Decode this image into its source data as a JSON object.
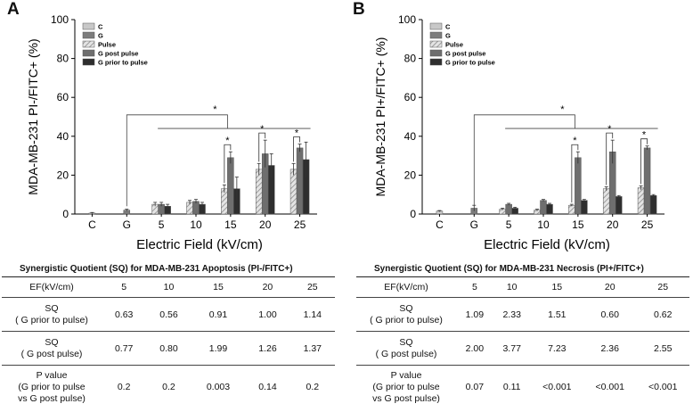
{
  "colors": {
    "C": "#c8c8c8",
    "G": "#7c7c7c",
    "Pulse": "#bdbdbd",
    "G post pulse": "#6e6e6e",
    "G prior to pulse": "#2e2e2e"
  },
  "chart_data": [
    {
      "type": "bar",
      "panel": "A",
      "ylabel": "MDA-MB-231 PI-/FITC+ (%)",
      "xlabel": "Electric Field (kV/cm)",
      "ylim": [
        0,
        100
      ],
      "yticks": [
        "0",
        "20",
        "40",
        "60",
        "80",
        "100"
      ],
      "categories": [
        "C",
        "G",
        "5",
        "10",
        "15",
        "20",
        "25"
      ],
      "legend": [
        "C",
        "G",
        "Pulse",
        "G post pulse",
        "G prior to pulse"
      ],
      "significance": "*",
      "groups": [
        {
          "label": "C",
          "bars": [
            {
              "series": "C",
              "value": 0.5,
              "err": 0.3
            }
          ]
        },
        {
          "label": "G",
          "bars": [
            {
              "series": "G",
              "value": 2,
              "err": 0.5
            }
          ]
        },
        {
          "label": "5",
          "bars": [
            {
              "series": "Pulse",
              "value": 5,
              "err": 1
            },
            {
              "series": "G post pulse",
              "value": 5,
              "err": 1
            },
            {
              "series": "G prior to pulse",
              "value": 4,
              "err": 1
            }
          ]
        },
        {
          "label": "10",
          "bars": [
            {
              "series": "Pulse",
              "value": 6,
              "err": 1
            },
            {
              "series": "G post pulse",
              "value": 6.5,
              "err": 1
            },
            {
              "series": "G prior to pulse",
              "value": 5,
              "err": 1
            }
          ]
        },
        {
          "label": "15",
          "bars": [
            {
              "series": "Pulse",
              "value": 13,
              "err": 2
            },
            {
              "series": "G post pulse",
              "value": 29,
              "err": 3
            },
            {
              "series": "G prior to pulse",
              "value": 13,
              "err": 6
            }
          ]
        },
        {
          "label": "20",
          "bars": [
            {
              "series": "Pulse",
              "value": 23,
              "err": 3
            },
            {
              "series": "G post pulse",
              "value": 31,
              "err": 7
            },
            {
              "series": "G prior to pulse",
              "value": 25,
              "err": 6
            }
          ]
        },
        {
          "label": "25",
          "bars": [
            {
              "series": "Pulse",
              "value": 23,
              "err": 3
            },
            {
              "series": "G post pulse",
              "value": 34,
              "err": 2
            },
            {
              "series": "G prior to pulse",
              "value": 28,
              "err": 9
            }
          ]
        }
      ]
    },
    {
      "type": "bar",
      "panel": "B",
      "ylabel": "MDA-MB-231 PI+/FITC+ (%)",
      "xlabel": "Electric Field (kV/cm)",
      "ylim": [
        0,
        100
      ],
      "yticks": [
        "0",
        "20",
        "40",
        "60",
        "80",
        "100"
      ],
      "categories": [
        "C",
        "G",
        "5",
        "10",
        "15",
        "20",
        "25"
      ],
      "legend": [
        "C",
        "G",
        "Pulse",
        "G post pulse",
        "G prior to pulse"
      ],
      "significance": "*",
      "groups": [
        {
          "label": "C",
          "bars": [
            {
              "series": "C",
              "value": 1.5,
              "err": 0.3
            }
          ]
        },
        {
          "label": "G",
          "bars": [
            {
              "series": "G",
              "value": 3,
              "err": 1.5
            }
          ]
        },
        {
          "label": "5",
          "bars": [
            {
              "series": "Pulse",
              "value": 2.5,
              "err": 0.5
            },
            {
              "series": "G post pulse",
              "value": 5,
              "err": 0.5
            },
            {
              "series": "G prior to pulse",
              "value": 3,
              "err": 0.5
            }
          ]
        },
        {
          "label": "10",
          "bars": [
            {
              "series": "Pulse",
              "value": 2,
              "err": 0.5
            },
            {
              "series": "G post pulse",
              "value": 7,
              "err": 0.5
            },
            {
              "series": "G prior to pulse",
              "value": 5,
              "err": 0.5
            }
          ]
        },
        {
          "label": "15",
          "bars": [
            {
              "series": "Pulse",
              "value": 4.5,
              "err": 0.5
            },
            {
              "series": "G post pulse",
              "value": 29,
              "err": 3
            },
            {
              "series": "G prior to pulse",
              "value": 7,
              "err": 0.5
            }
          ]
        },
        {
          "label": "20",
          "bars": [
            {
              "series": "Pulse",
              "value": 13,
              "err": 1
            },
            {
              "series": "G post pulse",
              "value": 32,
              "err": 6
            },
            {
              "series": "G prior to pulse",
              "value": 9,
              "err": 0.5
            }
          ]
        },
        {
          "label": "25",
          "bars": [
            {
              "series": "Pulse",
              "value": 13.5,
              "err": 1
            },
            {
              "series": "G post pulse",
              "value": 34,
              "err": 1
            },
            {
              "series": "G prior to pulse",
              "value": 9.5,
              "err": 0.5
            }
          ]
        }
      ]
    }
  ],
  "tables": [
    {
      "title": "Synergistic Quotient (SQ) for MDA-MB-231 Apoptosis (PI-/FITC+)",
      "header": [
        "EF(kV/cm)",
        "5",
        "10",
        "15",
        "20",
        "25"
      ],
      "rows": [
        {
          "label_1": "SQ",
          "label_2": "( G prior to pulse)",
          "values": [
            "0.63",
            "0.56",
            "0.91",
            "1.00",
            "1.14"
          ]
        },
        {
          "label_1": "SQ",
          "label_2": "( G post pulse)",
          "values": [
            "0.77",
            "0.80",
            "1.99",
            "1.26",
            "1.37"
          ]
        },
        {
          "label_1": "P value",
          "label_2": "(G prior to pulse",
          "label_3": "vs G post pulse)",
          "values": [
            "0.2",
            "0.2",
            "0.003",
            "0.14",
            "0.2"
          ]
        }
      ]
    },
    {
      "title": "Synergistic Quotient (SQ) for MDA-MB-231 Necrosis (PI+/FITC+)",
      "header": [
        "EF(kV/cm)",
        "5",
        "10",
        "15",
        "20",
        "25"
      ],
      "rows": [
        {
          "label_1": "SQ",
          "label_2": "( G prior to pulse)",
          "values": [
            "1.09",
            "2.33",
            "1.51",
            "0.60",
            "0.62"
          ]
        },
        {
          "label_1": "SQ",
          "label_2": "( G post pulse)",
          "values": [
            "2.00",
            "3.77",
            "7.23",
            "2.36",
            "2.55"
          ]
        },
        {
          "label_1": "P value",
          "label_2": "(G prior to pulse",
          "label_3": "vs G post pulse)",
          "values": [
            "0.07",
            "0.11",
            "<0.001",
            "<0.001",
            "<0.001"
          ]
        }
      ]
    }
  ]
}
